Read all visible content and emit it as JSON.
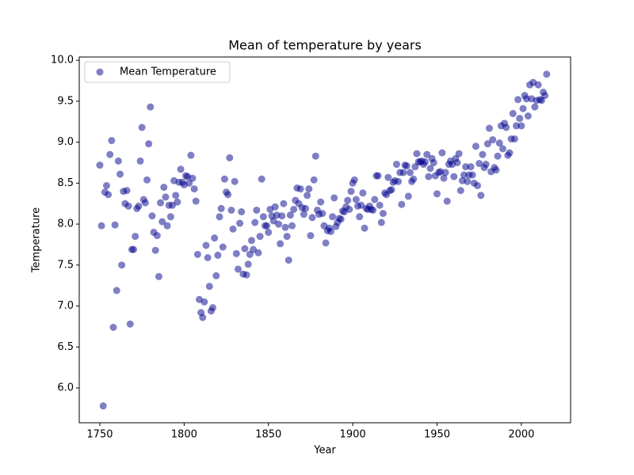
{
  "chart_data": {
    "type": "scatter",
    "title": "Mean of temperature by years",
    "xlabel": "Year",
    "ylabel": "Temperature",
    "legend": "upper left",
    "grid": false,
    "xlim": [
      1737.8,
      2029.2
    ],
    "ylim": [
      5.575,
      10.04
    ],
    "xticks": [
      1750,
      1800,
      1850,
      1900,
      1950,
      2000
    ],
    "yticks": [
      {
        "value": 6,
        "label": "6.0"
      },
      6.5,
      {
        "value": 7,
        "label": "7.0"
      },
      7.5,
      {
        "value": 8,
        "label": "8.0"
      },
      8.5,
      {
        "value": 9,
        "label": "9.0"
      },
      9.5,
      {
        "value": 10,
        "label": "10.0"
      }
    ],
    "series": [
      {
        "name": "Mean Temperature",
        "color": "#00008b",
        "x": [
          1750,
          1751,
          1752,
          1753,
          1754,
          1755,
          1756,
          1757,
          1758,
          1759,
          1760,
          1761,
          1762,
          1763,
          1764,
          1765,
          1766,
          1767,
          1768,
          1769,
          1770,
          1771,
          1772,
          1773,
          1774,
          1775,
          1776,
          1777,
          1778,
          1779,
          1780,
          1781,
          1782,
          1783,
          1784,
          1785,
          1786,
          1787,
          1788,
          1789,
          1790,
          1791,
          1792,
          1793,
          1794,
          1795,
          1796,
          1797,
          1798,
          1799,
          1800,
          1801,
          1802,
          1803,
          1804,
          1805,
          1806,
          1807,
          1808,
          1809,
          1810,
          1811,
          1812,
          1813,
          1814,
          1815,
          1816,
          1817,
          1818,
          1819,
          1820,
          1821,
          1822,
          1823,
          1824,
          1825,
          1826,
          1827,
          1828,
          1829,
          1830,
          1831,
          1832,
          1833,
          1834,
          1835,
          1836,
          1837,
          1838,
          1839,
          1840,
          1841,
          1842,
          1843,
          1844,
          1845,
          1846,
          1847,
          1848,
          1849,
          1850,
          1851,
          1852,
          1853,
          1854,
          1855,
          1856,
          1857,
          1858,
          1859,
          1860,
          1861,
          1862,
          1863,
          1864,
          1865,
          1866,
          1867,
          1868,
          1869,
          1870,
          1871,
          1872,
          1873,
          1874,
          1875,
          1876,
          1877,
          1878,
          1879,
          1880,
          1881,
          1882,
          1883,
          1884,
          1885,
          1886,
          1887,
          1888,
          1889,
          1890,
          1891,
          1892,
          1893,
          1894,
          1895,
          1896,
          1897,
          1898,
          1899,
          1900,
          1901,
          1902,
          1903,
          1904,
          1905,
          1906,
          1907,
          1908,
          1909,
          1910,
          1911,
          1912,
          1913,
          1914,
          1915,
          1916,
          1917,
          1918,
          1919,
          1920,
          1921,
          1922,
          1923,
          1924,
          1925,
          1926,
          1927,
          1928,
          1929,
          1930,
          1931,
          1932,
          1933,
          1934,
          1935,
          1936,
          1937,
          1938,
          1939,
          1940,
          1941,
          1942,
          1943,
          1944,
          1945,
          1946,
          1947,
          1948,
          1949,
          1950,
          1951,
          1952,
          1953,
          1954,
          1955,
          1956,
          1957,
          1958,
          1959,
          1960,
          1961,
          1962,
          1963,
          1964,
          1965,
          1966,
          1967,
          1968,
          1969,
          1970,
          1971,
          1972,
          1973,
          1974,
          1975,
          1976,
          1977,
          1978,
          1979,
          1980,
          1981,
          1982,
          1983,
          1984,
          1985,
          1986,
          1987,
          1988,
          1989,
          1990,
          1991,
          1992,
          1993,
          1994,
          1995,
          1996,
          1997,
          1998,
          1999,
          2000,
          2001,
          2002,
          2003,
          2004,
          2005,
          2006,
          2007,
          2008,
          2009,
          2010,
          2011,
          2012,
          2013,
          2014,
          2015
        ],
        "values": [
          8.72,
          7.98,
          5.78,
          8.39,
          8.47,
          8.36,
          8.85,
          9.02,
          6.74,
          7.99,
          7.19,
          8.77,
          8.61,
          7.5,
          8.4,
          8.25,
          8.41,
          8.22,
          6.78,
          7.69,
          7.69,
          7.85,
          8.19,
          8.22,
          8.77,
          9.18,
          8.3,
          8.26,
          8.54,
          8.98,
          9.43,
          8.1,
          7.9,
          7.68,
          7.86,
          7.36,
          8.26,
          8.03,
          8.45,
          8.33,
          7.98,
          8.23,
          8.09,
          8.23,
          8.53,
          8.35,
          8.27,
          8.51,
          8.67,
          8.51,
          8.48,
          8.59,
          8.58,
          8.5,
          8.84,
          8.56,
          8.43,
          8.28,
          7.63,
          7.08,
          6.92,
          6.86,
          7.05,
          7.74,
          7.59,
          7.24,
          6.94,
          6.98,
          7.83,
          7.37,
          7.62,
          8.09,
          8.19,
          7.72,
          8.55,
          8.39,
          8.36,
          8.81,
          8.17,
          7.94,
          8.52,
          7.64,
          7.45,
          8.01,
          8.15,
          7.39,
          7.7,
          7.38,
          7.51,
          7.63,
          7.8,
          7.69,
          8.02,
          8.17,
          7.65,
          7.85,
          8.55,
          8.09,
          7.98,
          7.98,
          7.9,
          8.18,
          8.1,
          8.04,
          8.21,
          8.11,
          8.0,
          7.76,
          8.1,
          8.25,
          7.96,
          7.85,
          7.56,
          8.11,
          7.98,
          8.18,
          8.29,
          8.44,
          8.25,
          8.43,
          8.2,
          8.12,
          8.19,
          8.35,
          8.43,
          7.86,
          8.08,
          8.54,
          8.83,
          8.17,
          8.12,
          8.27,
          8.13,
          7.98,
          7.77,
          7.92,
          7.95,
          7.91,
          8.09,
          8.32,
          7.97,
          8.02,
          8.07,
          8.06,
          8.16,
          8.15,
          8.21,
          8.29,
          8.18,
          8.4,
          8.5,
          8.54,
          8.3,
          8.22,
          8.09,
          8.23,
          8.38,
          7.95,
          8.19,
          8.18,
          8.22,
          8.18,
          8.17,
          8.3,
          8.59,
          8.59,
          8.23,
          8.02,
          8.13,
          8.38,
          8.36,
          8.57,
          8.41,
          8.42,
          8.51,
          8.53,
          8.73,
          8.52,
          8.63,
          8.24,
          8.63,
          8.72,
          8.71,
          8.34,
          8.63,
          8.52,
          8.55,
          8.7,
          8.86,
          8.76,
          8.76,
          8.77,
          8.73,
          8.76,
          8.85,
          8.58,
          8.68,
          8.8,
          8.75,
          8.59,
          8.37,
          8.63,
          8.64,
          8.87,
          8.56,
          8.63,
          8.28,
          8.73,
          8.77,
          8.73,
          8.58,
          8.8,
          8.75,
          8.86,
          8.41,
          8.53,
          8.6,
          8.7,
          8.52,
          8.6,
          8.7,
          8.6,
          8.5,
          8.95,
          8.47,
          8.74,
          8.35,
          8.85,
          8.69,
          8.73,
          8.98,
          9.17,
          8.64,
          9.03,
          8.69,
          8.66,
          8.83,
          8.99,
          9.2,
          8.92,
          9.23,
          9.18,
          8.84,
          8.87,
          9.04,
          9.35,
          9.04,
          9.2,
          9.52,
          9.29,
          9.2,
          9.41,
          9.57,
          9.53,
          9.32,
          9.7,
          9.53,
          9.73,
          9.43,
          9.51,
          9.7,
          9.52,
          9.51,
          9.61,
          9.57,
          9.83
        ]
      }
    ]
  }
}
